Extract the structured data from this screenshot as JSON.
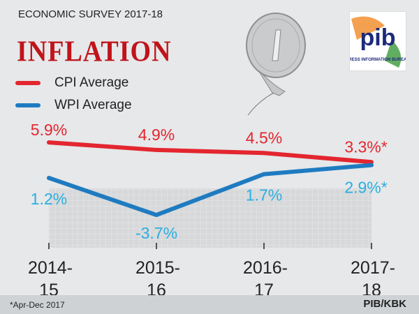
{
  "header": {
    "survey": "ECONOMIC SURVEY 2017-18",
    "title": "INFLATION"
  },
  "logo": {
    "text": "pib",
    "caption": "PRESS INFORMATION BUREAU"
  },
  "footer": {
    "note": "*Apr-Dec 2017",
    "credit": "PIB/KBK"
  },
  "colors": {
    "cpi": "#e3262f",
    "wpi": "#1f7bc0",
    "wpi_label": "#2aaee0",
    "title": "#c0141b"
  },
  "chart_data": {
    "type": "line",
    "categories": [
      "2014-15",
      "2015-16",
      "2016-17",
      "2017-18"
    ],
    "category_lines": [
      [
        "2014-",
        "15"
      ],
      [
        "2015-",
        "16"
      ],
      [
        "2016-",
        "17"
      ],
      [
        "2017-",
        "18"
      ]
    ],
    "series": [
      {
        "name": "CPI Average",
        "values": [
          5.9,
          4.9,
          4.5,
          3.3
        ],
        "labels": [
          "5.9%",
          "4.9%",
          "4.5%",
          "3.3%*"
        ]
      },
      {
        "name": "WPI Average",
        "values": [
          1.2,
          -3.7,
          1.7,
          2.9
        ],
        "labels": [
          "1.2%",
          "-3.7%",
          "1.7%",
          "2.9%*"
        ]
      }
    ],
    "legend": "top-left"
  }
}
